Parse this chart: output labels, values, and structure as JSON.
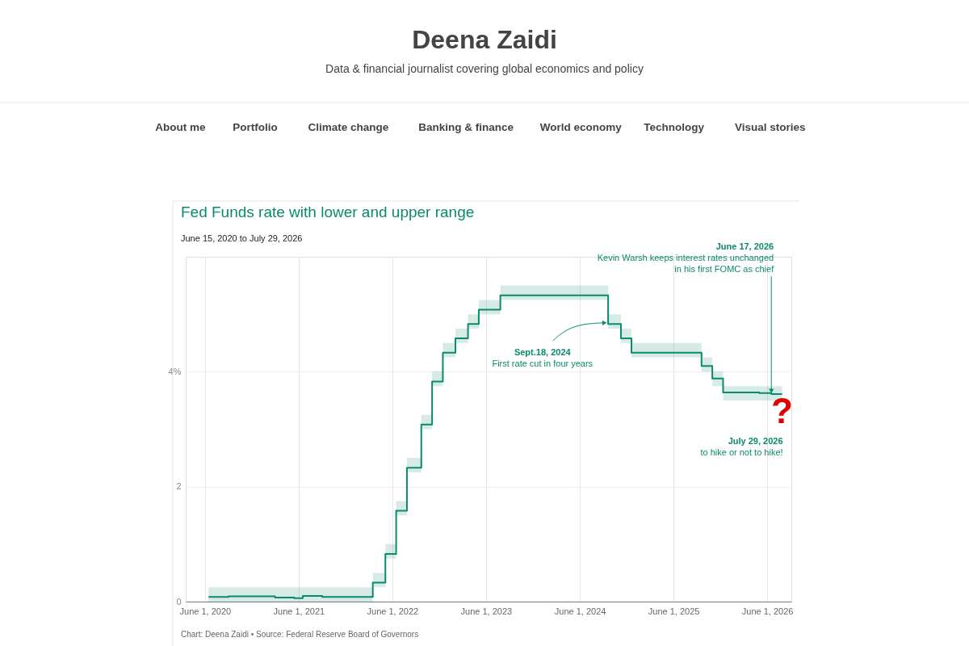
{
  "chart_data": {
    "type": "step",
    "title": "Fed Funds rate with lower and upper range",
    "subtitle": "June 15, 2020 to July 29, 2026",
    "x": [
      "2020-06-15",
      "2020-09-01",
      "2020-12-01",
      "2021-03-01",
      "2021-05-15",
      "2021-06-17",
      "2021-09-01",
      "2021-12-01",
      "2022-03-17",
      "2022-05-05",
      "2022-06-16",
      "2022-07-28",
      "2022-09-22",
      "2022-11-03",
      "2022-12-15",
      "2023-02-02",
      "2023-03-23",
      "2023-05-04",
      "2023-07-27",
      "2024-09-19",
      "2024-11-08",
      "2024-12-19",
      "2025-09-18",
      "2025-10-30",
      "2025-12-11",
      "2026-05-01",
      "2026-06-17",
      "2026-07-29"
    ],
    "series": [
      {
        "color": "#0b8a6c",
        "values": [
          0.08,
          0.09,
          0.09,
          0.07,
          0.06,
          0.1,
          0.08,
          0.08,
          0.33,
          0.83,
          1.58,
          2.33,
          3.08,
          3.83,
          4.33,
          4.58,
          4.83,
          5.08,
          5.33,
          4.83,
          4.58,
          4.33,
          4.1,
          3.88,
          3.64,
          3.63,
          3.61,
          3.61
        ],
        "lower": [
          0,
          0,
          0,
          0,
          0,
          0,
          0,
          0,
          0.25,
          0.75,
          1.5,
          2.25,
          3,
          3.75,
          4.25,
          4.5,
          4.75,
          5,
          5.25,
          4.75,
          4.5,
          4.25,
          4,
          3.75,
          3.5,
          3.5,
          3.5,
          3.5
        ],
        "upper": [
          0.25,
          0.25,
          0.25,
          0.25,
          0.25,
          0.25,
          0.25,
          0.25,
          0.5,
          1,
          1.75,
          2.5,
          3.25,
          4,
          4.5,
          4.75,
          5,
          5.25,
          5.5,
          5,
          4.75,
          4.5,
          4.25,
          4,
          3.75,
          3.75,
          3.75,
          3.75
        ]
      }
    ],
    "xlim": [
      "2020-03-18",
      "2026-09-03"
    ],
    "xticks": [
      {
        "value": "2020-06-01",
        "label": "June 1, 2020"
      },
      {
        "value": "2021-06-01",
        "label": "June 1, 2021"
      },
      {
        "value": "2022-06-01",
        "label": "June 1, 2022"
      },
      {
        "value": "2023-06-01",
        "label": "June 1, 2023"
      },
      {
        "value": "2024-06-01",
        "label": "June 1, 2024"
      },
      {
        "value": "2025-06-01",
        "label": "June 1, 2025"
      },
      {
        "value": "2026-06-01",
        "label": "June 1, 2026"
      }
    ],
    "ylim": [
      0,
      6
    ],
    "yticks": [
      0,
      2,
      {
        "value": 4,
        "label": "4%"
      }
    ],
    "grid": true,
    "annotations": [
      "Deena Zaidi",
      "Data & financial journalist covering global economics and policy",
      "About me",
      "Portfolio",
      "Climate change",
      "Banking & finance",
      "World economy",
      "Technology",
      "Visual stories",
      "Chart: Deena Zaidi • Source: Federal Reserve Board of Governors",
      {
        "text": "Sept.18, 2024\nFirst rate cut in four years",
        "x": "2024-09-18",
        "y": 4.85
      },
      {
        "text": "June 17, 2026\nKevin Warsh keeps interest rates unchanged\nin his first FOMC as chief",
        "x": "2026-06-17",
        "y": 3.62
      },
      {
        "text": "?",
        "x": "2026-07-29",
        "y": 3.45
      },
      "July 29, 2026\nto hike or not to hike!"
    ]
  }
}
